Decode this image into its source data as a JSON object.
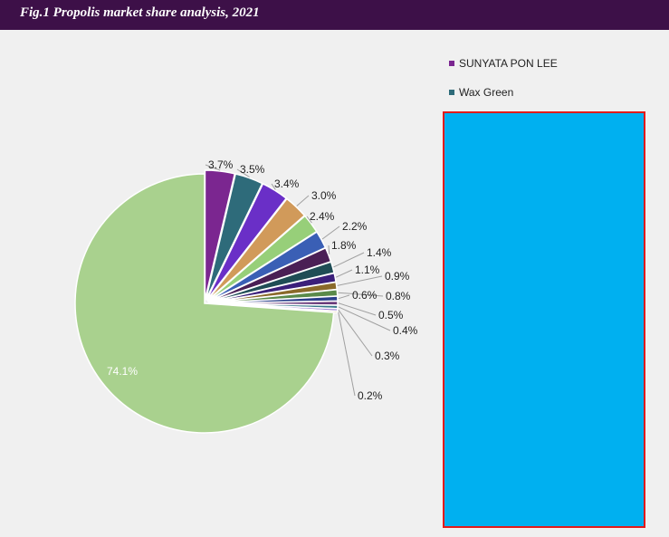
{
  "header": {
    "title": "Fig.1  Propolis market share analysis, 2021"
  },
  "legend": [
    {
      "label": "SUNYATA PON LEE",
      "color": "#7b2690"
    },
    {
      "label": "Wax Green",
      "color": "#2e6b7a"
    }
  ],
  "chart_data": {
    "type": "pie",
    "title": "Fig.1  Propolis market share analysis, 2021",
    "slices": [
      {
        "label": "3.7%",
        "value": 3.7,
        "color": "#7b2690"
      },
      {
        "label": "3.5%",
        "value": 3.5,
        "color": "#2e6b7a"
      },
      {
        "label": "3.4%",
        "value": 3.4,
        "color": "#6a2fc7"
      },
      {
        "label": "3.0%",
        "value": 3.0,
        "color": "#d19a5a"
      },
      {
        "label": "2.4%",
        "value": 2.4,
        "color": "#97cf79"
      },
      {
        "label": "2.2%",
        "value": 2.2,
        "color": "#3a5fb5"
      },
      {
        "label": "1.8%",
        "value": 1.8,
        "color": "#4a1f55"
      },
      {
        "label": "1.4%",
        "value": 1.4,
        "color": "#1f4d55"
      },
      {
        "label": "1.1%",
        "value": 1.1,
        "color": "#3b1f7a"
      },
      {
        "label": "0.9%",
        "value": 0.9,
        "color": "#8a6a2a"
      },
      {
        "label": "0.8%",
        "value": 0.8,
        "color": "#5a8a4a"
      },
      {
        "label": "0.6%",
        "value": 0.6,
        "color": "#2a3f8a"
      },
      {
        "label": "0.5%",
        "value": 0.5,
        "color": "#6a3a7a"
      },
      {
        "label": "0.4%",
        "value": 0.4,
        "color": "#3a7a8a"
      },
      {
        "label": "0.3%",
        "value": 0.3,
        "color": "#9a7ad0"
      },
      {
        "label": "0.2%",
        "value": 0.2,
        "color": "#d0b080"
      },
      {
        "label": "74.1%",
        "value": 74.1,
        "color": "#a9d18e"
      }
    ]
  }
}
